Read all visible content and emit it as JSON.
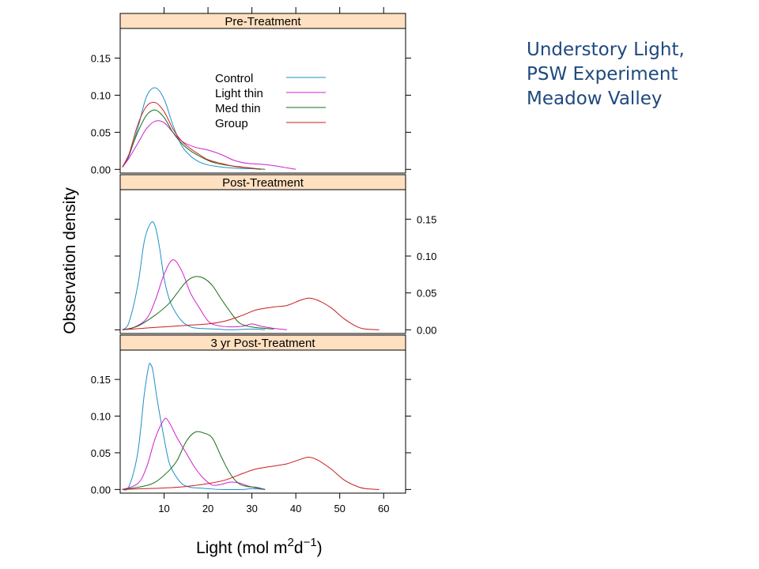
{
  "slide_title": {
    "line1": "Understory Light,",
    "line2": "PSW Experiment",
    "line3": "Meadow Valley"
  },
  "colors": {
    "Control": "#1f8fc9",
    "Light thin": "#d020d0",
    "Med thin": "#1a6e1a",
    "Group": "#c81e1e",
    "strip": "#ffe0c0",
    "title": "#1f497d"
  },
  "chart_data": {
    "type": "line",
    "layout": "lattice density plot, 3 panels stacked vertically",
    "xlabel": "Light (mol m",
    "xlabel_exp1": "2",
    "xlabel_mid": "d",
    "xlabel_exp2": "−1",
    "xlabel_end": ")",
    "ylabel": "Observation density",
    "xlim": [
      0,
      65
    ],
    "ylim": [
      -0.005,
      0.19
    ],
    "x_ticks": [
      10,
      20,
      30,
      40,
      50,
      60
    ],
    "y_ticks": [
      0.0,
      0.05,
      0.1,
      0.15
    ],
    "legend": {
      "placement": "inside top panel, upper-middle",
      "entries": [
        "Control",
        "Light thin",
        "Med thin",
        "Group"
      ]
    },
    "panels": [
      {
        "title": "Pre-Treatment",
        "y_axis_side": "left",
        "series": [
          {
            "name": "Control",
            "points": [
              [
                0.5,
                0.003
              ],
              [
                2,
                0.018
              ],
              [
                4,
                0.055
              ],
              [
                6,
                0.098
              ],
              [
                8,
                0.11
              ],
              [
                10,
                0.095
              ],
              [
                12,
                0.06
              ],
              [
                14,
                0.032
              ],
              [
                16,
                0.018
              ],
              [
                18,
                0.01
              ],
              [
                20,
                0.006
              ],
              [
                22,
                0.004
              ],
              [
                25,
                0.002
              ],
              [
                28,
                0.001
              ],
              [
                30,
                0.001
              ],
              [
                32,
                0.0
              ]
            ]
          },
          {
            "name": "Light thin",
            "points": [
              [
                0.5,
                0.003
              ],
              [
                2,
                0.015
              ],
              [
                4,
                0.035
              ],
              [
                6,
                0.055
              ],
              [
                8,
                0.065
              ],
              [
                10,
                0.063
              ],
              [
                12,
                0.05
              ],
              [
                14,
                0.038
              ],
              [
                17,
                0.03
              ],
              [
                20,
                0.026
              ],
              [
                23,
                0.02
              ],
              [
                26,
                0.012
              ],
              [
                29,
                0.008
              ],
              [
                32,
                0.007
              ],
              [
                35,
                0.005
              ],
              [
                38,
                0.002
              ],
              [
                40,
                0.0
              ]
            ]
          },
          {
            "name": "Med thin",
            "points": [
              [
                0.5,
                0.003
              ],
              [
                2,
                0.02
              ],
              [
                4,
                0.05
              ],
              [
                6,
                0.073
              ],
              [
                8,
                0.08
              ],
              [
                10,
                0.07
              ],
              [
                12,
                0.05
              ],
              [
                14,
                0.035
              ],
              [
                16,
                0.025
              ],
              [
                18,
                0.018
              ],
              [
                20,
                0.012
              ],
              [
                22,
                0.008
              ],
              [
                25,
                0.005
              ],
              [
                28,
                0.003
              ],
              [
                31,
                0.001
              ],
              [
                33,
                0.0
              ]
            ]
          },
          {
            "name": "Group",
            "points": [
              [
                0.5,
                0.003
              ],
              [
                2,
                0.02
              ],
              [
                4,
                0.06
              ],
              [
                6,
                0.085
              ],
              [
                8,
                0.09
              ],
              [
                10,
                0.078
              ],
              [
                12,
                0.055
              ],
              [
                14,
                0.038
              ],
              [
                16,
                0.028
              ],
              [
                18,
                0.02
              ],
              [
                20,
                0.013
              ],
              [
                23,
                0.008
              ],
              [
                26,
                0.004
              ],
              [
                29,
                0.002
              ],
              [
                32,
                0.0
              ]
            ]
          }
        ]
      },
      {
        "title": "Post-Treatment",
        "y_axis_side": "right",
        "series": [
          {
            "name": "Control",
            "points": [
              [
                0.5,
                0.0
              ],
              [
                2,
                0.01
              ],
              [
                4,
                0.06
              ],
              [
                5.5,
                0.12
              ],
              [
                7,
                0.145
              ],
              [
                8,
                0.14
              ],
              [
                9,
                0.11
              ],
              [
                10,
                0.07
              ],
              [
                11,
                0.045
              ],
              [
                12,
                0.03
              ],
              [
                14,
                0.012
              ],
              [
                16,
                0.004
              ],
              [
                18,
                0.002
              ],
              [
                22,
                0.001
              ],
              [
                25,
                0.0
              ],
              [
                30,
                0.001
              ],
              [
                33,
                0.0
              ]
            ]
          },
          {
            "name": "Light thin",
            "points": [
              [
                0.5,
                0.0
              ],
              [
                3,
                0.003
              ],
              [
                6,
                0.015
              ],
              [
                8,
                0.04
              ],
              [
                10,
                0.075
              ],
              [
                12,
                0.095
              ],
              [
                14,
                0.08
              ],
              [
                16,
                0.05
              ],
              [
                18,
                0.03
              ],
              [
                20,
                0.012
              ],
              [
                22,
                0.006
              ],
              [
                25,
                0.004
              ],
              [
                28,
                0.005
              ],
              [
                30,
                0.008
              ],
              [
                32,
                0.005
              ],
              [
                35,
                0.002
              ],
              [
                38,
                0.0
              ]
            ]
          },
          {
            "name": "Med thin",
            "points": [
              [
                0.5,
                0.0
              ],
              [
                4,
                0.005
              ],
              [
                8,
                0.02
              ],
              [
                11,
                0.035
              ],
              [
                13,
                0.05
              ],
              [
                15,
                0.065
              ],
              [
                17,
                0.072
              ],
              [
                19,
                0.07
              ],
              [
                21,
                0.06
              ],
              [
                23,
                0.042
              ],
              [
                25,
                0.025
              ],
              [
                27,
                0.01
              ],
              [
                29,
                0.005
              ],
              [
                31,
                0.003
              ],
              [
                33,
                0.002
              ],
              [
                35,
                0.001
              ]
            ]
          },
          {
            "name": "Group",
            "points": [
              [
                0.5,
                0.0
              ],
              [
                5,
                0.002
              ],
              [
                10,
                0.004
              ],
              [
                15,
                0.006
              ],
              [
                20,
                0.008
              ],
              [
                24,
                0.012
              ],
              [
                28,
                0.02
              ],
              [
                31,
                0.027
              ],
              [
                35,
                0.031
              ],
              [
                38,
                0.033
              ],
              [
                41,
                0.04
              ],
              [
                43,
                0.043
              ],
              [
                45,
                0.04
              ],
              [
                48,
                0.03
              ],
              [
                51,
                0.015
              ],
              [
                54,
                0.004
              ],
              [
                56,
                0.001
              ],
              [
                59,
                0.0
              ]
            ]
          }
        ]
      },
      {
        "title": "3 yr Post-Treatment",
        "y_axis_side": "left",
        "series": [
          {
            "name": "Control",
            "points": [
              [
                0.5,
                0.0
              ],
              [
                2,
                0.004
              ],
              [
                4,
                0.05
              ],
              [
                5.5,
                0.13
              ],
              [
                6.5,
                0.168
              ],
              [
                7,
                0.17
              ],
              [
                7.5,
                0.16
              ],
              [
                8.5,
                0.12
              ],
              [
                10,
                0.07
              ],
              [
                11,
                0.04
              ],
              [
                12,
                0.025
              ],
              [
                14,
                0.008
              ],
              [
                16,
                0.003
              ],
              [
                18,
                0.002
              ],
              [
                20,
                0.001
              ],
              [
                23,
                0.0
              ],
              [
                28,
                0.0
              ],
              [
                30,
                0.001
              ],
              [
                33,
                0.0
              ]
            ]
          },
          {
            "name": "Light thin",
            "points": [
              [
                0.5,
                0.0
              ],
              [
                4,
                0.008
              ],
              [
                6,
                0.03
              ],
              [
                8,
                0.07
              ],
              [
                10,
                0.095
              ],
              [
                11,
                0.093
              ],
              [
                13,
                0.07
              ],
              [
                15,
                0.05
              ],
              [
                17,
                0.03
              ],
              [
                19,
                0.015
              ],
              [
                21,
                0.006
              ],
              [
                23,
                0.007
              ],
              [
                25,
                0.01
              ],
              [
                27,
                0.009
              ],
              [
                29,
                0.005
              ],
              [
                31,
                0.002
              ],
              [
                33,
                0.0
              ]
            ]
          },
          {
            "name": "Med thin",
            "points": [
              [
                0.5,
                0.0
              ],
              [
                5,
                0.004
              ],
              [
                8,
                0.01
              ],
              [
                11,
                0.025
              ],
              [
                13,
                0.04
              ],
              [
                15,
                0.065
              ],
              [
                17,
                0.078
              ],
              [
                19,
                0.077
              ],
              [
                21,
                0.07
              ],
              [
                23,
                0.045
              ],
              [
                25,
                0.022
              ],
              [
                27,
                0.008
              ],
              [
                29,
                0.004
              ],
              [
                31,
                0.003
              ],
              [
                33,
                0.0
              ]
            ]
          },
          {
            "name": "Group",
            "points": [
              [
                0.5,
                0.0
              ],
              [
                5,
                0.001
              ],
              [
                10,
                0.002
              ],
              [
                15,
                0.004
              ],
              [
                20,
                0.008
              ],
              [
                24,
                0.013
              ],
              [
                28,
                0.022
              ],
              [
                31,
                0.028
              ],
              [
                35,
                0.032
              ],
              [
                38,
                0.035
              ],
              [
                41,
                0.041
              ],
              [
                43,
                0.044
              ],
              [
                45,
                0.04
              ],
              [
                48,
                0.028
              ],
              [
                51,
                0.013
              ],
              [
                54,
                0.004
              ],
              [
                56,
                0.001
              ],
              [
                59,
                0.0
              ]
            ]
          }
        ]
      }
    ]
  }
}
